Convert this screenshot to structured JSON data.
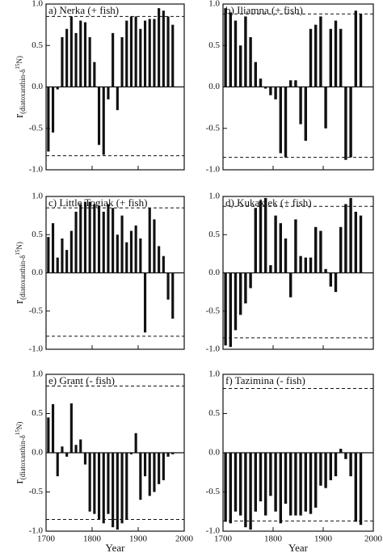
{
  "chart_data": [
    {
      "type": "bar",
      "title": "a) Nerka (+ fish)",
      "ylabel": "r",
      "ylabel_sub": "(diatoxanthin-δ",
      "ylabel_sup": "15",
      "ylabel_end": "N)",
      "x": [
        1705,
        1715,
        1725,
        1735,
        1745,
        1755,
        1765,
        1775,
        1785,
        1795,
        1805,
        1815,
        1825,
        1835,
        1845,
        1855,
        1865,
        1875,
        1885,
        1895,
        1905,
        1915,
        1925,
        1935,
        1945,
        1955,
        1965,
        1975
      ],
      "values": [
        -0.78,
        -0.55,
        -0.03,
        0.6,
        0.7,
        0.85,
        0.65,
        0.8,
        0.78,
        0.6,
        0.3,
        -0.7,
        -0.82,
        -0.15,
        0.65,
        -0.28,
        0.6,
        0.8,
        0.85,
        0.85,
        0.7,
        0.8,
        0.82,
        0.82,
        0.95,
        0.92,
        0.85,
        0.75
      ],
      "thresholds": [
        0.85,
        -0.83
      ],
      "xlim": [
        1700,
        2000
      ],
      "xticks": [
        1700,
        1800,
        1900,
        2000
      ],
      "ylim": [
        -1,
        1
      ],
      "yticks": [
        {
          "value": -1,
          "label": "-1.0"
        },
        {
          "value": -0.5,
          "label": "-0.5"
        },
        {
          "value": 0,
          "label": "0.0"
        },
        {
          "value": 0.5,
          "label": "0.5"
        },
        {
          "value": 1,
          "label": "1.0"
        }
      ],
      "color": "#111"
    },
    {
      "type": "bar",
      "title": "b) Iliamna (+ fish)",
      "x": [
        1705,
        1715,
        1725,
        1735,
        1745,
        1755,
        1765,
        1775,
        1785,
        1795,
        1805,
        1815,
        1825,
        1835,
        1845,
        1855,
        1865,
        1875,
        1885,
        1895,
        1905,
        1915,
        1925,
        1935,
        1945,
        1955,
        1965,
        1975
      ],
      "values": [
        0.95,
        0.9,
        0.8,
        0.5,
        0.85,
        0.6,
        0.3,
        0.1,
        -0.02,
        -0.1,
        -0.15,
        -0.8,
        -0.85,
        0.08,
        0.08,
        -0.45,
        -0.65,
        0.7,
        0.75,
        0.85,
        -0.5,
        0.7,
        0.8,
        0.7,
        -0.88,
        -0.85,
        0.92,
        0.88
      ],
      "thresholds": [
        0.88,
        -0.85
      ],
      "xlim": [
        1700,
        2000
      ],
      "xticks": [
        1700,
        1800,
        1900,
        2000
      ],
      "ylim": [
        -1,
        1
      ],
      "yticks": [
        {
          "value": -1,
          "label": "-1.0"
        },
        {
          "value": -0.5,
          "label": "-0.5"
        },
        {
          "value": 0,
          "label": "0.0"
        },
        {
          "value": 0.5,
          "label": "0.5"
        },
        {
          "value": 1,
          "label": "1.0"
        }
      ],
      "color": "#111"
    },
    {
      "type": "bar",
      "title": "c) Little Togiak (+ fish)",
      "ylabel": "r",
      "ylabel_sub": "(diatoxanthin-δ",
      "ylabel_sup": "15",
      "ylabel_end": "N)",
      "x": [
        1705,
        1715,
        1725,
        1735,
        1745,
        1755,
        1765,
        1775,
        1785,
        1795,
        1805,
        1815,
        1825,
        1835,
        1845,
        1855,
        1865,
        1875,
        1885,
        1895,
        1905,
        1915,
        1925,
        1935,
        1945,
        1955,
        1965,
        1975
      ],
      "values": [
        0.47,
        0.65,
        0.2,
        0.45,
        0.3,
        0.55,
        0.8,
        0.9,
        0.93,
        0.93,
        0.9,
        0.88,
        0.8,
        0.9,
        0.85,
        0.5,
        0.75,
        0.4,
        0.55,
        0.62,
        0.45,
        -0.78,
        0.85,
        0.7,
        0.35,
        0.22,
        -0.35,
        -0.6
      ],
      "thresholds": [
        0.85,
        -0.83
      ],
      "xlim": [
        1700,
        2000
      ],
      "xticks": [
        1700,
        1800,
        1900,
        2000
      ],
      "ylim": [
        -1,
        1
      ],
      "yticks": [
        {
          "value": -1,
          "label": "-1.0"
        },
        {
          "value": -0.5,
          "label": "-0.5"
        },
        {
          "value": 0,
          "label": "0.0"
        },
        {
          "value": 0.5,
          "label": "0.5"
        },
        {
          "value": 1,
          "label": "1.0"
        }
      ],
      "color": "#111"
    },
    {
      "type": "bar",
      "title": "d) Kukaklek (+ fish)",
      "x": [
        1705,
        1715,
        1725,
        1735,
        1745,
        1755,
        1765,
        1775,
        1785,
        1795,
        1805,
        1815,
        1825,
        1835,
        1845,
        1855,
        1865,
        1875,
        1885,
        1895,
        1905,
        1915,
        1925,
        1935,
        1945,
        1955,
        1965,
        1975
      ],
      "values": [
        -0.95,
        -0.97,
        -0.75,
        -0.55,
        -0.4,
        -0.2,
        0.85,
        0.95,
        0.98,
        0.1,
        0.75,
        0.65,
        0.45,
        -0.32,
        0.7,
        0.22,
        0.2,
        0.2,
        0.6,
        0.55,
        0.05,
        -0.18,
        -0.25,
        0.6,
        0.9,
        0.98,
        0.8,
        0.75
      ],
      "thresholds": [
        0.87,
        -0.85
      ],
      "xlim": [
        1700,
        2000
      ],
      "xticks": [
        1700,
        1800,
        1900,
        2000
      ],
      "ylim": [
        -1,
        1
      ],
      "yticks": [
        {
          "value": -1,
          "label": "-1.0"
        },
        {
          "value": -0.5,
          "label": "-0.5"
        },
        {
          "value": 0,
          "label": "0.0"
        },
        {
          "value": 0.5,
          "label": "0.5"
        },
        {
          "value": 1,
          "label": "1.0"
        }
      ],
      "color": "#111"
    },
    {
      "type": "bar",
      "title": "e) Grant (- fish)",
      "ylabel": "r",
      "ylabel_sub": "(diatoxanthin-δ",
      "ylabel_sup": "15",
      "ylabel_end": "N)",
      "xlabel": "Year",
      "x": [
        1705,
        1715,
        1725,
        1735,
        1745,
        1755,
        1765,
        1775,
        1785,
        1795,
        1805,
        1815,
        1825,
        1835,
        1845,
        1855,
        1865,
        1875,
        1885,
        1895,
        1905,
        1915,
        1925,
        1935,
        1945,
        1955,
        1965,
        1975
      ],
      "values": [
        0.45,
        0.62,
        -0.3,
        0.08,
        -0.05,
        0.63,
        0.1,
        0.17,
        -0.15,
        -0.75,
        -0.78,
        -0.85,
        -0.9,
        -0.78,
        -0.95,
        -0.98,
        -0.9,
        -0.85,
        -0.02,
        0.25,
        -0.6,
        -0.3,
        -0.55,
        -0.5,
        -0.4,
        -0.35,
        -0.05,
        -0.02
      ],
      "thresholds": [
        0.85,
        -0.85
      ],
      "xlim": [
        1700,
        2000
      ],
      "xticks": [
        1700,
        1800,
        1900,
        2000
      ],
      "ylim": [
        -1,
        1
      ],
      "yticks": [
        {
          "value": -1,
          "label": "-1.0"
        },
        {
          "value": -0.5,
          "label": "-0.5"
        },
        {
          "value": 0,
          "label": "0.0"
        },
        {
          "value": 0.5,
          "label": "0.5"
        },
        {
          "value": 1,
          "label": "1.0"
        }
      ],
      "color": "#111"
    },
    {
      "type": "bar",
      "title": "f) Tazimina (- fish)",
      "xlabel": "Year",
      "x": [
        1705,
        1715,
        1725,
        1735,
        1745,
        1755,
        1765,
        1775,
        1785,
        1795,
        1805,
        1815,
        1825,
        1835,
        1845,
        1855,
        1865,
        1875,
        1885,
        1895,
        1905,
        1915,
        1925,
        1935,
        1945,
        1955,
        1965,
        1975
      ],
      "values": [
        -0.88,
        -0.9,
        -0.75,
        -0.8,
        -0.95,
        -0.98,
        -0.75,
        -0.62,
        -0.8,
        -0.55,
        -0.75,
        -0.9,
        -0.65,
        -0.8,
        -0.8,
        -0.8,
        -0.75,
        -0.78,
        -0.7,
        -0.42,
        -0.45,
        -0.35,
        -0.3,
        0.05,
        -0.08,
        -0.3,
        -0.88,
        -0.92
      ],
      "thresholds": [
        0.82,
        -0.87
      ],
      "xlim": [
        1700,
        2000
      ],
      "xticks": [
        1700,
        1800,
        1900,
        2000
      ],
      "ylim": [
        -1,
        1
      ],
      "yticks": [
        {
          "value": -1,
          "label": "-1.0"
        },
        {
          "value": -0.5,
          "label": "-0.5"
        },
        {
          "value": 0,
          "label": "0.0"
        },
        {
          "value": 0.5,
          "label": "0.5"
        },
        {
          "value": 1,
          "label": "1.0"
        }
      ],
      "color": "#111"
    }
  ]
}
